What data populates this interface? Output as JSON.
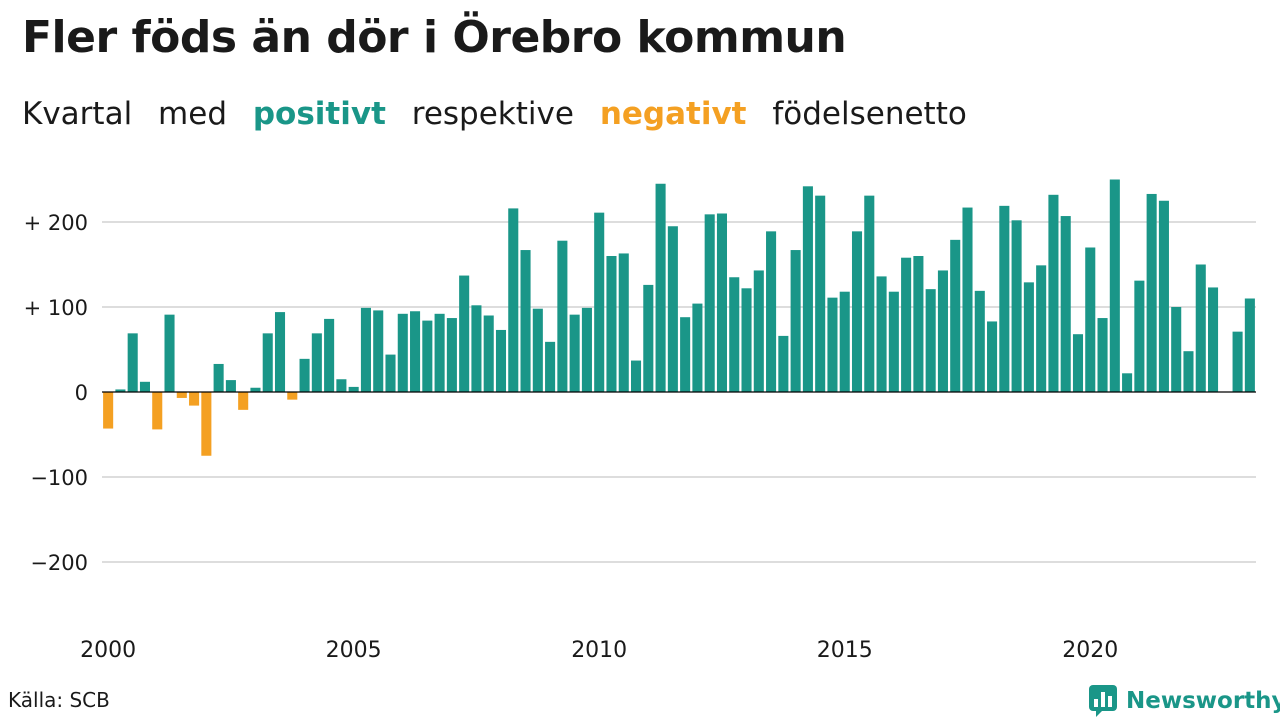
{
  "title": "Fler föds än dör i Örebro kommun",
  "subtitle": {
    "w1": "Kvartal",
    "w2": "med",
    "positive": "positivt",
    "w3": "respektive",
    "negative": "negativt",
    "w4": "födelsenetto"
  },
  "source": "Källa: SCB",
  "brand": "Newsworthy",
  "colors": {
    "positive": "#1a9688",
    "negative": "#f4a022",
    "grid": "#dddddd",
    "zero_line": "#000000"
  },
  "chart_data": {
    "type": "bar",
    "x_start": "2000 Q1",
    "x_ticks": [
      "2000",
      "2005",
      "2010",
      "2015",
      "2020"
    ],
    "y_ticks": [
      {
        "value": 200,
        "label": "+ 200"
      },
      {
        "value": 100,
        "label": "+ 100"
      },
      {
        "value": 0,
        "label": "0"
      },
      {
        "value": -100,
        "label": "−100"
      },
      {
        "value": -200,
        "label": "−200"
      }
    ],
    "ylim": [
      -200,
      250
    ],
    "grid": true,
    "values": [
      -43,
      3,
      69,
      12,
      -44,
      91,
      -7,
      -16,
      -75,
      33,
      14,
      -21,
      5,
      69,
      94,
      -9,
      39,
      69,
      86,
      15,
      6,
      99,
      96,
      44,
      92,
      95,
      84,
      92,
      87,
      137,
      102,
      90,
      73,
      216,
      167,
      98,
      59,
      178,
      91,
      99,
      211,
      160,
      163,
      37,
      126,
      245,
      195,
      88,
      104,
      209,
      210,
      135,
      122,
      143,
      189,
      66,
      167,
      242,
      231,
      111,
      118,
      189,
      231,
      136,
      118,
      158,
      160,
      121,
      143,
      179,
      217,
      119,
      83,
      219,
      202,
      129,
      149,
      232,
      207,
      68,
      170,
      87,
      250,
      22,
      131,
      233,
      225,
      100,
      48,
      150,
      123,
      0,
      71,
      110
    ]
  }
}
